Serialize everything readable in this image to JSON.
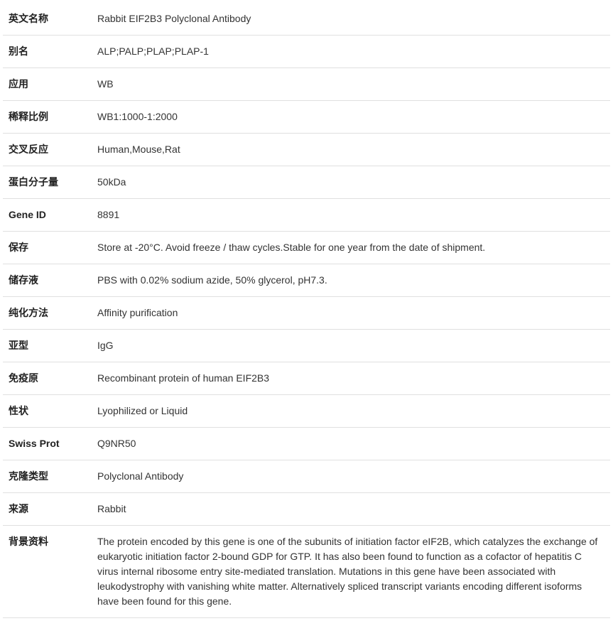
{
  "table": {
    "border_color": "#e0e0e0",
    "label_color": "#222222",
    "value_color": "#333333",
    "font_size": 14,
    "label_width": 125,
    "rows": [
      {
        "label": "英文名称",
        "value": "Rabbit EIF2B3 Polyclonal Antibody"
      },
      {
        "label": "别名",
        "value": "ALP;PALP;PLAP;PLAP-1"
      },
      {
        "label": "应用",
        "value": "WB"
      },
      {
        "label": "稀释比例",
        "value": "WB1:1000-1:2000"
      },
      {
        "label": "交叉反应",
        "value": "Human,Mouse,Rat"
      },
      {
        "label": "蛋白分子量",
        "value": "50kDa"
      },
      {
        "label": "Gene ID",
        "value": "8891"
      },
      {
        "label": "保存",
        "value": "Store at -20°C. Avoid freeze / thaw cycles.Stable for one year from the date of shipment."
      },
      {
        "label": "储存液",
        "value": "PBS with 0.02% sodium azide, 50% glycerol, pH7.3."
      },
      {
        "label": "纯化方法",
        "value": "Affinity purification"
      },
      {
        "label": "亚型",
        "value": "IgG"
      },
      {
        "label": "免疫原",
        "value": "Recombinant protein of human EIF2B3"
      },
      {
        "label": "性状",
        "value": "Lyophilized or Liquid"
      },
      {
        "label": "Swiss Prot",
        "value": "Q9NR50"
      },
      {
        "label": "克隆类型",
        "value": "Polyclonal Antibody"
      },
      {
        "label": "来源",
        "value": "Rabbit"
      },
      {
        "label": "背景资料",
        "value": "The protein encoded by this gene is one of the subunits of initiation factor eIF2B, which catalyzes the exchange of eukaryotic initiation factor 2-bound GDP for GTP. It has also been found to function as a cofactor of hepatitis C virus internal ribosome entry site-mediated translation. Mutations in this gene have been associated with leukodystrophy with vanishing white matter. Alternatively spliced transcript variants encoding different isoforms have been found for this gene."
      }
    ]
  }
}
